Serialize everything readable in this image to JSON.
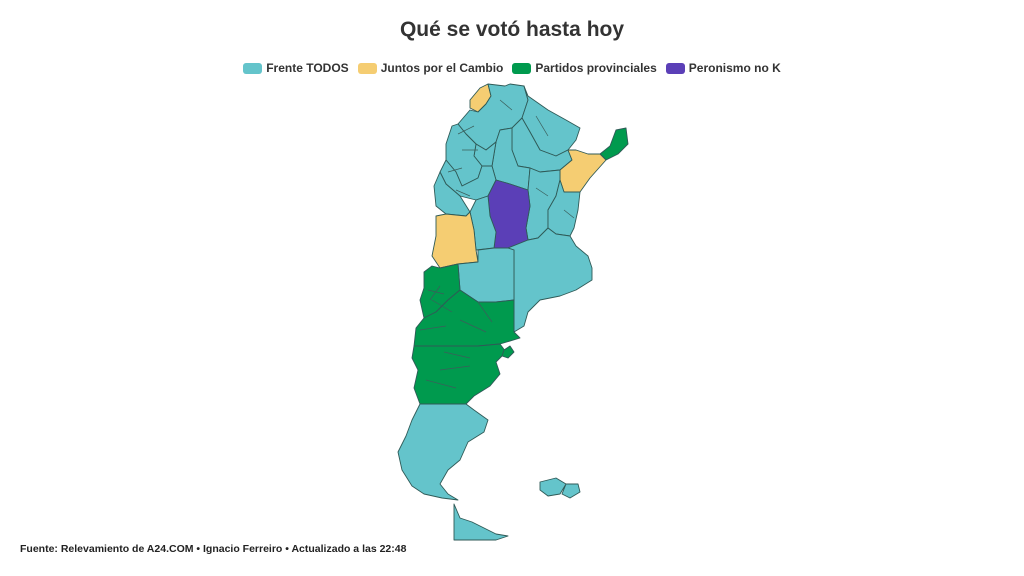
{
  "title": "Qué se votó hasta hoy",
  "legend": [
    {
      "label": "Frente TODOS",
      "color": "#64c4cb"
    },
    {
      "label": "Juntos por el Cambio",
      "color": "#f5cd72"
    },
    {
      "label": "Partidos provinciales",
      "color": "#009a4e"
    },
    {
      "label": "Peronismo no K",
      "color": "#5b3fb7"
    }
  ],
  "source": "Fuente: Relevamiento de A24.COM • Ignacio Ferreiro • Actualizado a las 22:48"
}
